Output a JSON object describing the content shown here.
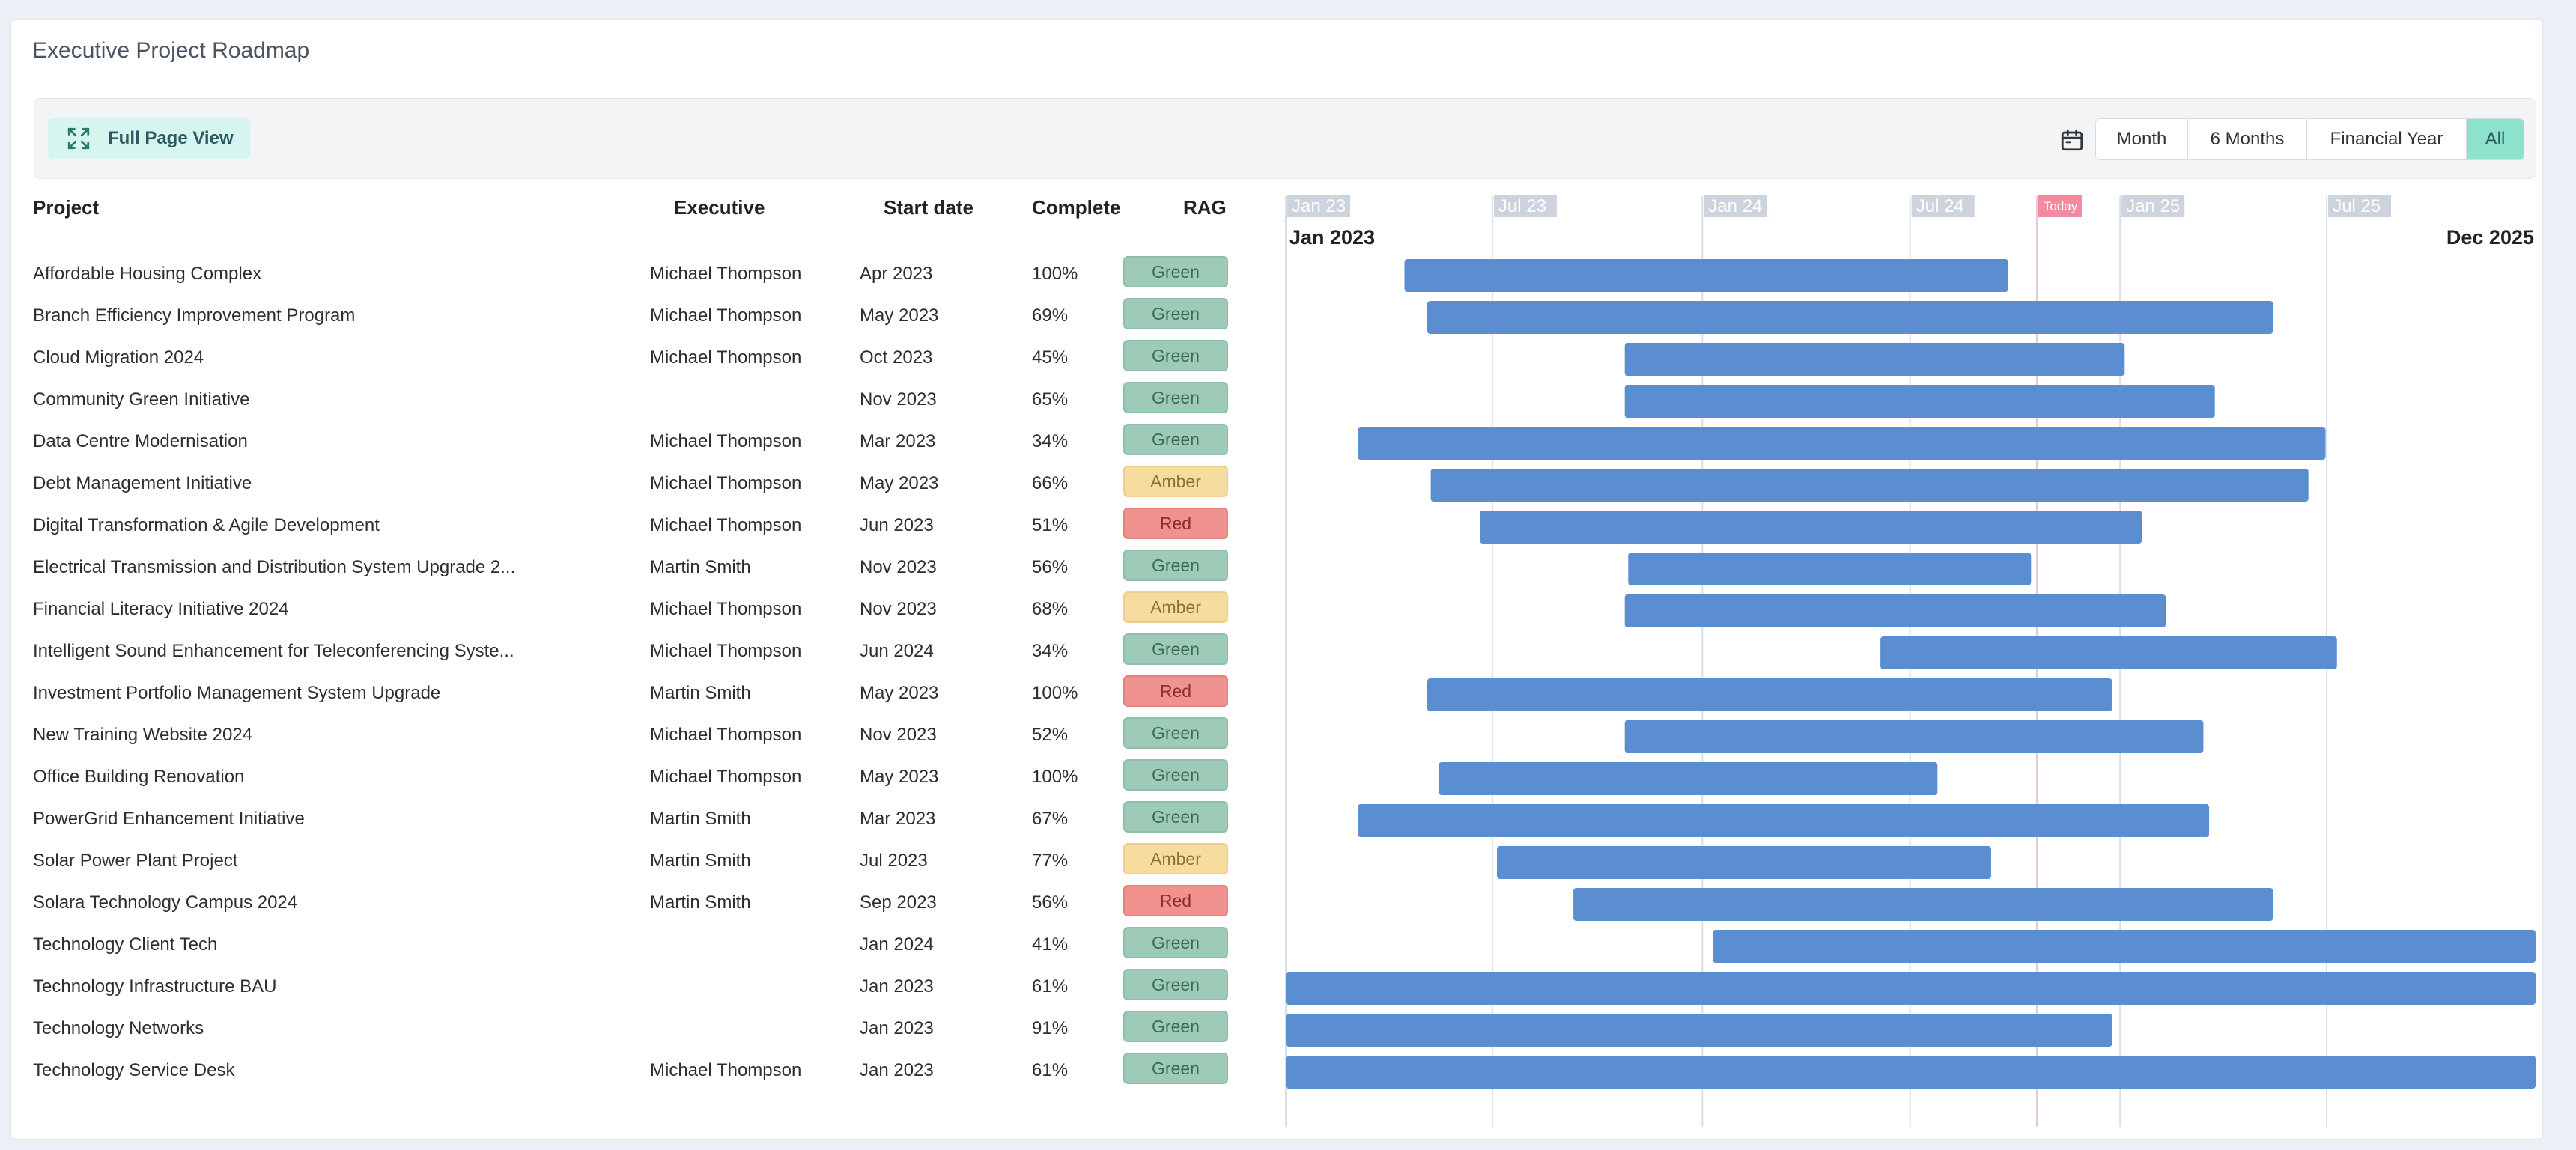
{
  "title": "Executive Project Roadmap",
  "toolbar": {
    "full_page_label": "Full Page View",
    "icons": {
      "expand": "expand-icon",
      "calendar": "calendar-icon"
    },
    "view_options": [
      {
        "label": "Month",
        "active": false
      },
      {
        "label": "6 Months",
        "active": false
      },
      {
        "label": "Financial Year",
        "active": false
      },
      {
        "label": "All",
        "active": true
      }
    ]
  },
  "columns": {
    "project": "Project",
    "executive": "Executive",
    "start_date": "Start date",
    "complete": "Complete",
    "rag": "RAG"
  },
  "colors": {
    "bar": "#5b8ed0",
    "grid": "#d9dfe8",
    "axis_label_bg": "#cdd4de",
    "today": "#f48aa0",
    "green": "#9ecbb8",
    "amber": "#f6dc9e",
    "red": "#ef9290",
    "active_tab": "#8ce2cb"
  },
  "timeline": {
    "range_start_label": "Jan 2023",
    "range_end_label": "Dec 2025",
    "range_start": "2023-01-01",
    "range_end": "2025-12-31",
    "ticks": [
      {
        "label": "Jan 23",
        "date": "2023-01-01"
      },
      {
        "label": "Jul 23",
        "date": "2023-07-01"
      },
      {
        "label": "Jan 24",
        "date": "2024-01-01"
      },
      {
        "label": "Jul 24",
        "date": "2024-07-01"
      },
      {
        "label": "Jan 25",
        "date": "2025-01-01"
      },
      {
        "label": "Jul 25",
        "date": "2025-07-01"
      }
    ],
    "today_label": "Today",
    "today": "2024-10-20"
  },
  "rows": [
    {
      "project": "Affordable Housing Complex",
      "executive": "Michael Thompson",
      "start": "Apr 2023",
      "complete": "100%",
      "rag": "Green",
      "bar_start": "2023-04-15",
      "bar_end": "2024-09-25"
    },
    {
      "project": "Branch Efficiency Improvement Program",
      "executive": "Michael Thompson",
      "start": "May 2023",
      "complete": "69%",
      "rag": "Green",
      "bar_start": "2023-05-05",
      "bar_end": "2025-05-15"
    },
    {
      "project": "Cloud Migration 2024",
      "executive": "Michael Thompson",
      "start": "Oct 2023",
      "complete": "45%",
      "rag": "Green",
      "bar_start": "2023-10-25",
      "bar_end": "2025-01-05"
    },
    {
      "project": "Community Green Initiative",
      "executive": "",
      "start": "Nov 2023",
      "complete": "65%",
      "rag": "Green",
      "bar_start": "2023-10-25",
      "bar_end": "2025-03-25"
    },
    {
      "project": "Data Centre Modernisation",
      "executive": "Michael Thompson",
      "start": "Mar 2023",
      "complete": "34%",
      "rag": "Green",
      "bar_start": "2023-03-05",
      "bar_end": "2025-06-30"
    },
    {
      "project": "Debt Management Initiative",
      "executive": "Michael Thompson",
      "start": "May 2023",
      "complete": "66%",
      "rag": "Amber",
      "bar_start": "2023-05-08",
      "bar_end": "2025-06-15"
    },
    {
      "project": "Digital Transformation & Agile Development",
      "executive": "Michael Thompson",
      "start": "Jun 2023",
      "complete": "51%",
      "rag": "Red",
      "bar_start": "2023-06-20",
      "bar_end": "2025-01-20"
    },
    {
      "project": "Electrical Transmission and Distribution System Upgrade 2...",
      "executive": "Martin Smith",
      "start": "Nov 2023",
      "complete": "56%",
      "rag": "Green",
      "bar_start": "2023-10-28",
      "bar_end": "2024-10-15"
    },
    {
      "project": "Financial Literacy Initiative 2024",
      "executive": "Michael Thompson",
      "start": "Nov 2023",
      "complete": "68%",
      "rag": "Amber",
      "bar_start": "2023-10-25",
      "bar_end": "2025-02-10"
    },
    {
      "project": "Intelligent Sound Enhancement for Teleconferencing Syste...",
      "executive": "Michael Thompson",
      "start": "Jun 2024",
      "complete": "34%",
      "rag": "Green",
      "bar_start": "2024-06-05",
      "bar_end": "2025-07-10"
    },
    {
      "project": "Investment Portfolio Management System Upgrade",
      "executive": "Martin Smith",
      "start": "May 2023",
      "complete": "100%",
      "rag": "Red",
      "bar_start": "2023-05-05",
      "bar_end": "2024-12-25"
    },
    {
      "project": "New Training Website 2024",
      "executive": "Michael Thompson",
      "start": "Nov 2023",
      "complete": "52%",
      "rag": "Green",
      "bar_start": "2023-10-25",
      "bar_end": "2025-03-15"
    },
    {
      "project": "Office Building Renovation",
      "executive": "Michael Thompson",
      "start": "May 2023",
      "complete": "100%",
      "rag": "Green",
      "bar_start": "2023-05-15",
      "bar_end": "2024-07-25"
    },
    {
      "project": "PowerGrid Enhancement Initiative",
      "executive": "Martin Smith",
      "start": "Mar 2023",
      "complete": "67%",
      "rag": "Green",
      "bar_start": "2023-03-05",
      "bar_end": "2025-03-20"
    },
    {
      "project": "Solar Power Plant Project",
      "executive": "Martin Smith",
      "start": "Jul 2023",
      "complete": "77%",
      "rag": "Amber",
      "bar_start": "2023-07-05",
      "bar_end": "2024-09-10"
    },
    {
      "project": "Solara Technology Campus 2024",
      "executive": "Martin Smith",
      "start": "Sep 2023",
      "complete": "56%",
      "rag": "Red",
      "bar_start": "2023-09-10",
      "bar_end": "2025-05-15"
    },
    {
      "project": "Technology Client Tech",
      "executive": "",
      "start": "Jan 2024",
      "complete": "41%",
      "rag": "Green",
      "bar_start": "2024-01-10",
      "bar_end": "2025-12-31"
    },
    {
      "project": "Technology Infrastructure BAU",
      "executive": "",
      "start": "Jan 2023",
      "complete": "61%",
      "rag": "Green",
      "bar_start": "2023-01-01",
      "bar_end": "2025-12-31"
    },
    {
      "project": "Technology Networks",
      "executive": "",
      "start": "Jan 2023",
      "complete": "91%",
      "rag": "Green",
      "bar_start": "2023-01-01",
      "bar_end": "2024-12-25"
    },
    {
      "project": "Technology Service Desk",
      "executive": "Michael Thompson",
      "start": "Jan 2023",
      "complete": "61%",
      "rag": "Green",
      "bar_start": "2023-01-01",
      "bar_end": "2025-12-31"
    }
  ]
}
